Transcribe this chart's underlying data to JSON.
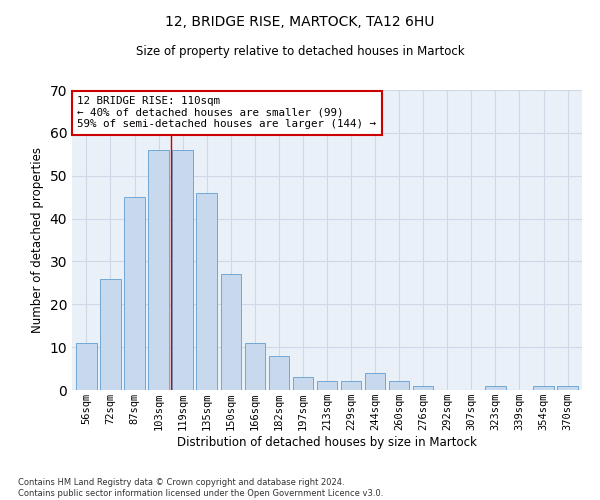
{
  "title": "12, BRIDGE RISE, MARTOCK, TA12 6HU",
  "subtitle": "Size of property relative to detached houses in Martock",
  "xlabel": "Distribution of detached houses by size in Martock",
  "ylabel": "Number of detached properties",
  "categories": [
    "56sqm",
    "72sqm",
    "87sqm",
    "103sqm",
    "119sqm",
    "135sqm",
    "150sqm",
    "166sqm",
    "182sqm",
    "197sqm",
    "213sqm",
    "229sqm",
    "244sqm",
    "260sqm",
    "276sqm",
    "292sqm",
    "307sqm",
    "323sqm",
    "339sqm",
    "354sqm",
    "370sqm"
  ],
  "values": [
    11,
    26,
    45,
    56,
    56,
    46,
    27,
    11,
    8,
    3,
    2,
    2,
    4,
    2,
    1,
    0,
    0,
    1,
    0,
    1,
    1
  ],
  "bar_color": "#c9d9ed",
  "bar_edge_color": "#6fa8d6",
  "grid_color": "#d0d8e8",
  "background_color": "#eaf0f8",
  "vline_color": "#cc0000",
  "vline_pos": 3.5,
  "annotation_text": "12 BRIDGE RISE: 110sqm\n← 40% of detached houses are smaller (99)\n59% of semi-detached houses are larger (144) →",
  "annotation_box_color": "#ffffff",
  "annotation_box_edge": "#cc0000",
  "ylim": [
    0,
    70
  ],
  "yticks": [
    0,
    10,
    20,
    30,
    40,
    50,
    60,
    70
  ],
  "footer1": "Contains HM Land Registry data © Crown copyright and database right 2024.",
  "footer2": "Contains public sector information licensed under the Open Government Licence v3.0."
}
